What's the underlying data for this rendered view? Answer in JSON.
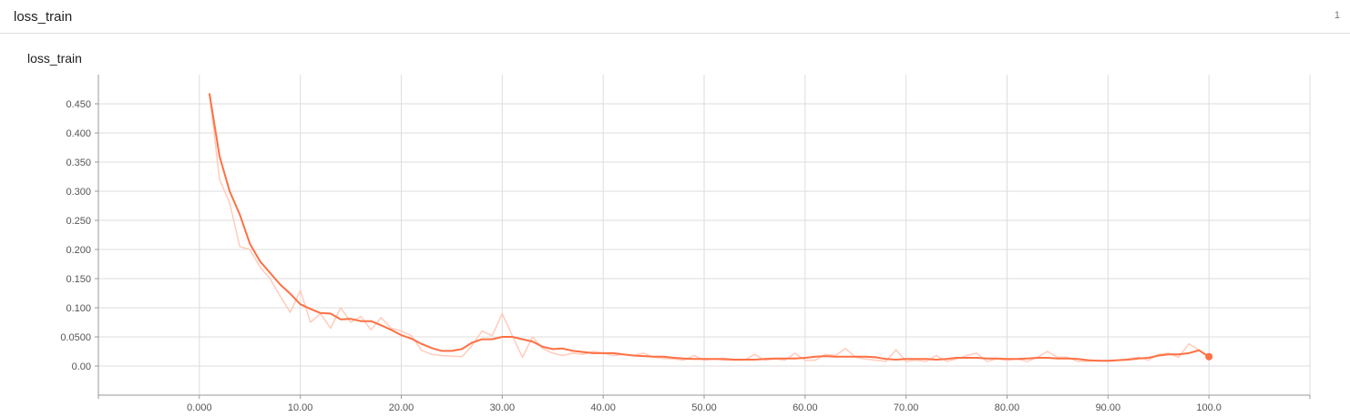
{
  "header": {
    "title": "loss_train",
    "count": "1"
  },
  "card": {
    "title": "loss_train"
  },
  "colors": {
    "series": "#ff7043",
    "raw": "#ffccbc",
    "grid": "#dddddd",
    "axis": "#999999"
  },
  "chart_data": {
    "type": "line",
    "title": "loss_train",
    "xlabel": "",
    "ylabel": "",
    "xlim": [
      -10,
      110
    ],
    "ylim": [
      -0.05,
      0.5
    ],
    "grid": true,
    "x_ticks": [
      0,
      10,
      20,
      30,
      40,
      50,
      60,
      70,
      80,
      90,
      100
    ],
    "x_tick_labels": [
      "0.000",
      "10.00",
      "20.00",
      "30.00",
      "40.00",
      "50.00",
      "60.00",
      "70.00",
      "80.00",
      "90.00",
      "100.0"
    ],
    "y_ticks": [
      0,
      0.05,
      0.1,
      0.15,
      0.2,
      0.25,
      0.3,
      0.35,
      0.4,
      0.45
    ],
    "y_tick_labels": [
      "0.00",
      "0.0500",
      "0.100",
      "0.150",
      "0.200",
      "0.250",
      "0.300",
      "0.350",
      "0.400",
      "0.450"
    ],
    "series": [
      {
        "x": [
          1,
          2,
          3,
          4,
          5,
          6,
          7,
          8,
          9,
          10,
          11,
          12,
          13,
          14,
          15,
          16,
          17,
          18,
          19,
          20,
          21,
          22,
          23,
          24,
          25,
          26,
          27,
          28,
          29,
          30,
          31,
          32,
          33,
          34,
          35,
          36,
          37,
          38,
          39,
          40,
          41,
          42,
          43,
          44,
          45,
          46,
          47,
          48,
          49,
          50,
          51,
          52,
          53,
          54,
          55,
          56,
          57,
          58,
          59,
          60,
          61,
          62,
          63,
          64,
          65,
          66,
          67,
          68,
          69,
          70,
          71,
          72,
          73,
          74,
          75,
          76,
          77,
          78,
          79,
          80,
          81,
          82,
          83,
          84,
          85,
          86,
          87,
          88,
          89,
          90,
          91,
          92,
          93,
          94,
          95,
          96,
          97,
          98,
          99,
          100
        ],
        "y": [
          0.468,
          0.32,
          0.28,
          0.205,
          0.2,
          0.17,
          0.15,
          0.12,
          0.092,
          0.13,
          0.075,
          0.09,
          0.065,
          0.1,
          0.075,
          0.085,
          0.062,
          0.083,
          0.065,
          0.06,
          0.052,
          0.027,
          0.02,
          0.018,
          0.017,
          0.016,
          0.035,
          0.06,
          0.052,
          0.09,
          0.052,
          0.015,
          0.05,
          0.03,
          0.022,
          0.018,
          0.022,
          0.02,
          0.025,
          0.022,
          0.018,
          0.02,
          0.018,
          0.022,
          0.015,
          0.013,
          0.012,
          0.01,
          0.018,
          0.01,
          0.012,
          0.01,
          0.01,
          0.01,
          0.02,
          0.01,
          0.012,
          0.01,
          0.022,
          0.01,
          0.01,
          0.02,
          0.018,
          0.03,
          0.015,
          0.012,
          0.01,
          0.008,
          0.028,
          0.008,
          0.01,
          0.008,
          0.018,
          0.008,
          0.012,
          0.018,
          0.022,
          0.008,
          0.012,
          0.01,
          0.012,
          0.008,
          0.015,
          0.025,
          0.015,
          0.015,
          0.008,
          0.008,
          0.01,
          0.008,
          0.01,
          0.012,
          0.015,
          0.01,
          0.02,
          0.022,
          0.015,
          0.038,
          0.028,
          0.015
        ]
      },
      {
        "x": [
          1,
          2,
          3,
          4,
          5,
          6,
          7,
          8,
          9,
          10,
          11,
          12,
          13,
          14,
          15,
          16,
          17,
          18,
          19,
          20,
          21,
          22,
          23,
          24,
          25,
          26,
          27,
          28,
          29,
          30,
          31,
          32,
          33,
          34,
          35,
          36,
          37,
          38,
          39,
          40,
          41,
          42,
          43,
          44,
          45,
          46,
          47,
          48,
          49,
          50,
          51,
          52,
          53,
          54,
          55,
          56,
          57,
          58,
          59,
          60,
          61,
          62,
          63,
          64,
          65,
          66,
          67,
          68,
          69,
          70,
          71,
          72,
          73,
          74,
          75,
          76,
          77,
          78,
          79,
          80,
          81,
          82,
          83,
          84,
          85,
          86,
          87,
          88,
          89,
          90,
          91,
          92,
          93,
          94,
          95,
          96,
          97,
          98,
          99,
          100
        ],
        "y": [
          0.468,
          0.36,
          0.3,
          0.26,
          0.21,
          0.18,
          0.16,
          0.14,
          0.124,
          0.106,
          0.098,
          0.091,
          0.09,
          0.08,
          0.081,
          0.077,
          0.077,
          0.07,
          0.062,
          0.053,
          0.047,
          0.038,
          0.031,
          0.026,
          0.026,
          0.029,
          0.04,
          0.046,
          0.046,
          0.05,
          0.05,
          0.046,
          0.042,
          0.033,
          0.029,
          0.03,
          0.026,
          0.024,
          0.022,
          0.022,
          0.022,
          0.02,
          0.018,
          0.017,
          0.016,
          0.016,
          0.014,
          0.013,
          0.012,
          0.012,
          0.012,
          0.012,
          0.011,
          0.011,
          0.011,
          0.012,
          0.013,
          0.013,
          0.013,
          0.014,
          0.016,
          0.017,
          0.016,
          0.016,
          0.016,
          0.016,
          0.015,
          0.012,
          0.011,
          0.012,
          0.012,
          0.012,
          0.011,
          0.012,
          0.014,
          0.014,
          0.014,
          0.013,
          0.013,
          0.012,
          0.012,
          0.013,
          0.014,
          0.014,
          0.013,
          0.013,
          0.012,
          0.01,
          0.009,
          0.009,
          0.01,
          0.011,
          0.013,
          0.014,
          0.018,
          0.02,
          0.02,
          0.022,
          0.027,
          0.016
        ]
      }
    ],
    "last_point": {
      "x": 100,
      "y": 0.016
    }
  }
}
